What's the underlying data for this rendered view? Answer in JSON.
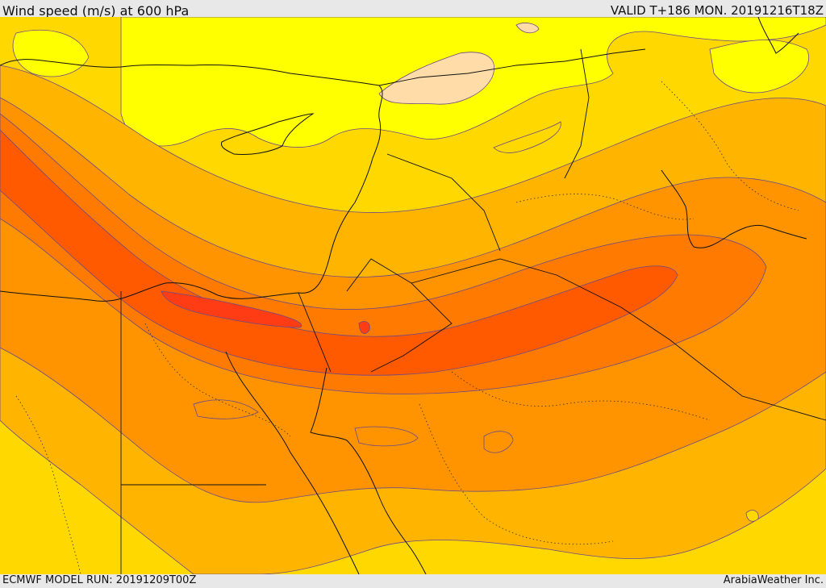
{
  "header": {
    "title": "Wind speed (m/s) at 600 hPa",
    "valid_time": "VALID T+186 MON. 20191216T18Z"
  },
  "footer": {
    "model_run": "ECMWF MODEL RUN: 20191209T00Z",
    "credit": "ArabiaWeather Inc."
  },
  "colors": {
    "wind_lightest": "#ffdca8",
    "wind_low": "#ffff00",
    "wind_moderate": "#ffd800",
    "wind_mid": "#ffb400",
    "wind_strong": "#ff9400",
    "wind_stronger": "#ff7a00",
    "wind_jet": "#ff5a00",
    "wind_core": "#ff3c14"
  }
}
